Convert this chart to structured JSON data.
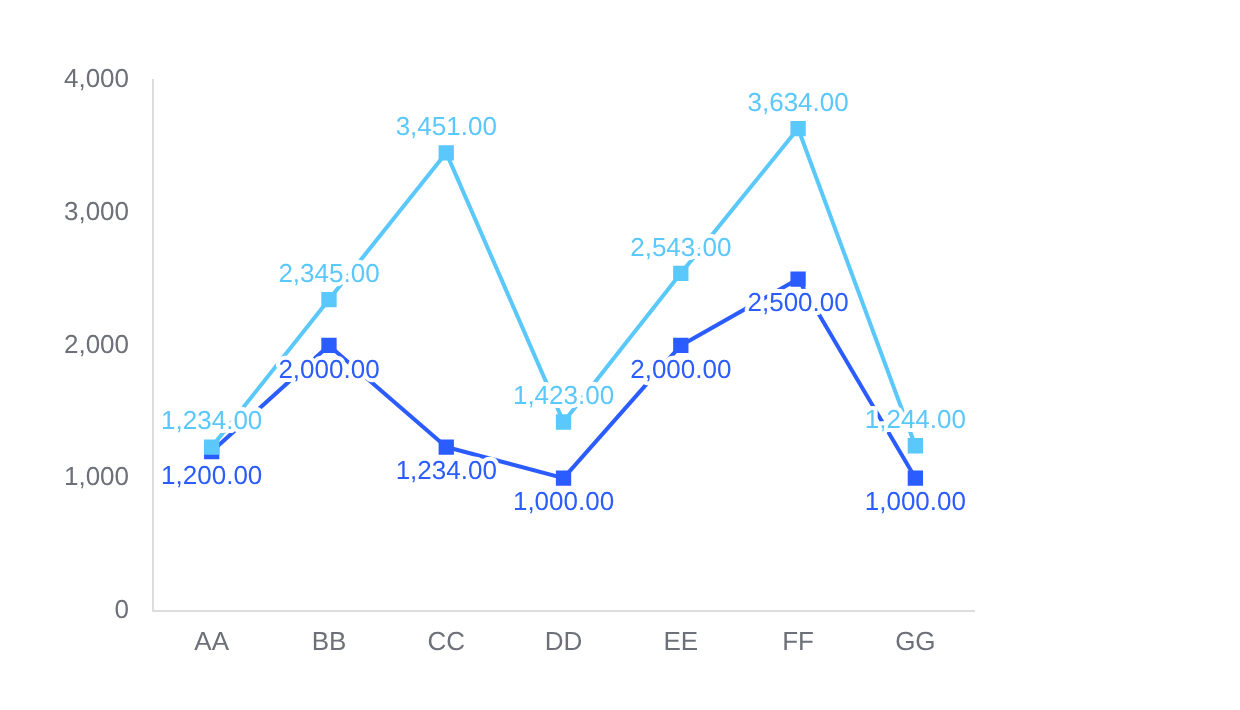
{
  "chart_data": {
    "type": "line",
    "categories": [
      "AA",
      "BB",
      "CC",
      "DD",
      "EE",
      "FF",
      "GG"
    ],
    "series": [
      {
        "color": "#5ac8fa",
        "values": [
          1234,
          2345,
          3451,
          1423,
          2543,
          3634,
          1244
        ],
        "value_labels": [
          "1,234.00",
          "2,345.00",
          "3,451.00",
          "1,423.00",
          "2,543.00",
          "3,634.00",
          "1,244.00"
        ]
      },
      {
        "color": "#2b5cff",
        "values": [
          1200,
          2000,
          1234,
          1000,
          2000,
          2500,
          1000
        ],
        "value_labels": [
          "1,200.00",
          "2,000.00",
          "1,234.00",
          "1,000.00",
          "2,000.00",
          "2,500.00",
          "1,000.00"
        ]
      }
    ],
    "ylim": [
      0,
      4000
    ],
    "yticks": [
      0,
      {
        "value": 1000,
        "label": "1,000"
      },
      {
        "value": 2000,
        "label": "2,000"
      },
      {
        "value": 3000,
        "label": "3,000"
      },
      {
        "value": 4000,
        "label": "4,000"
      }
    ],
    "grid": false,
    "legend": false,
    "marker": "square",
    "line_style": "solid"
  }
}
